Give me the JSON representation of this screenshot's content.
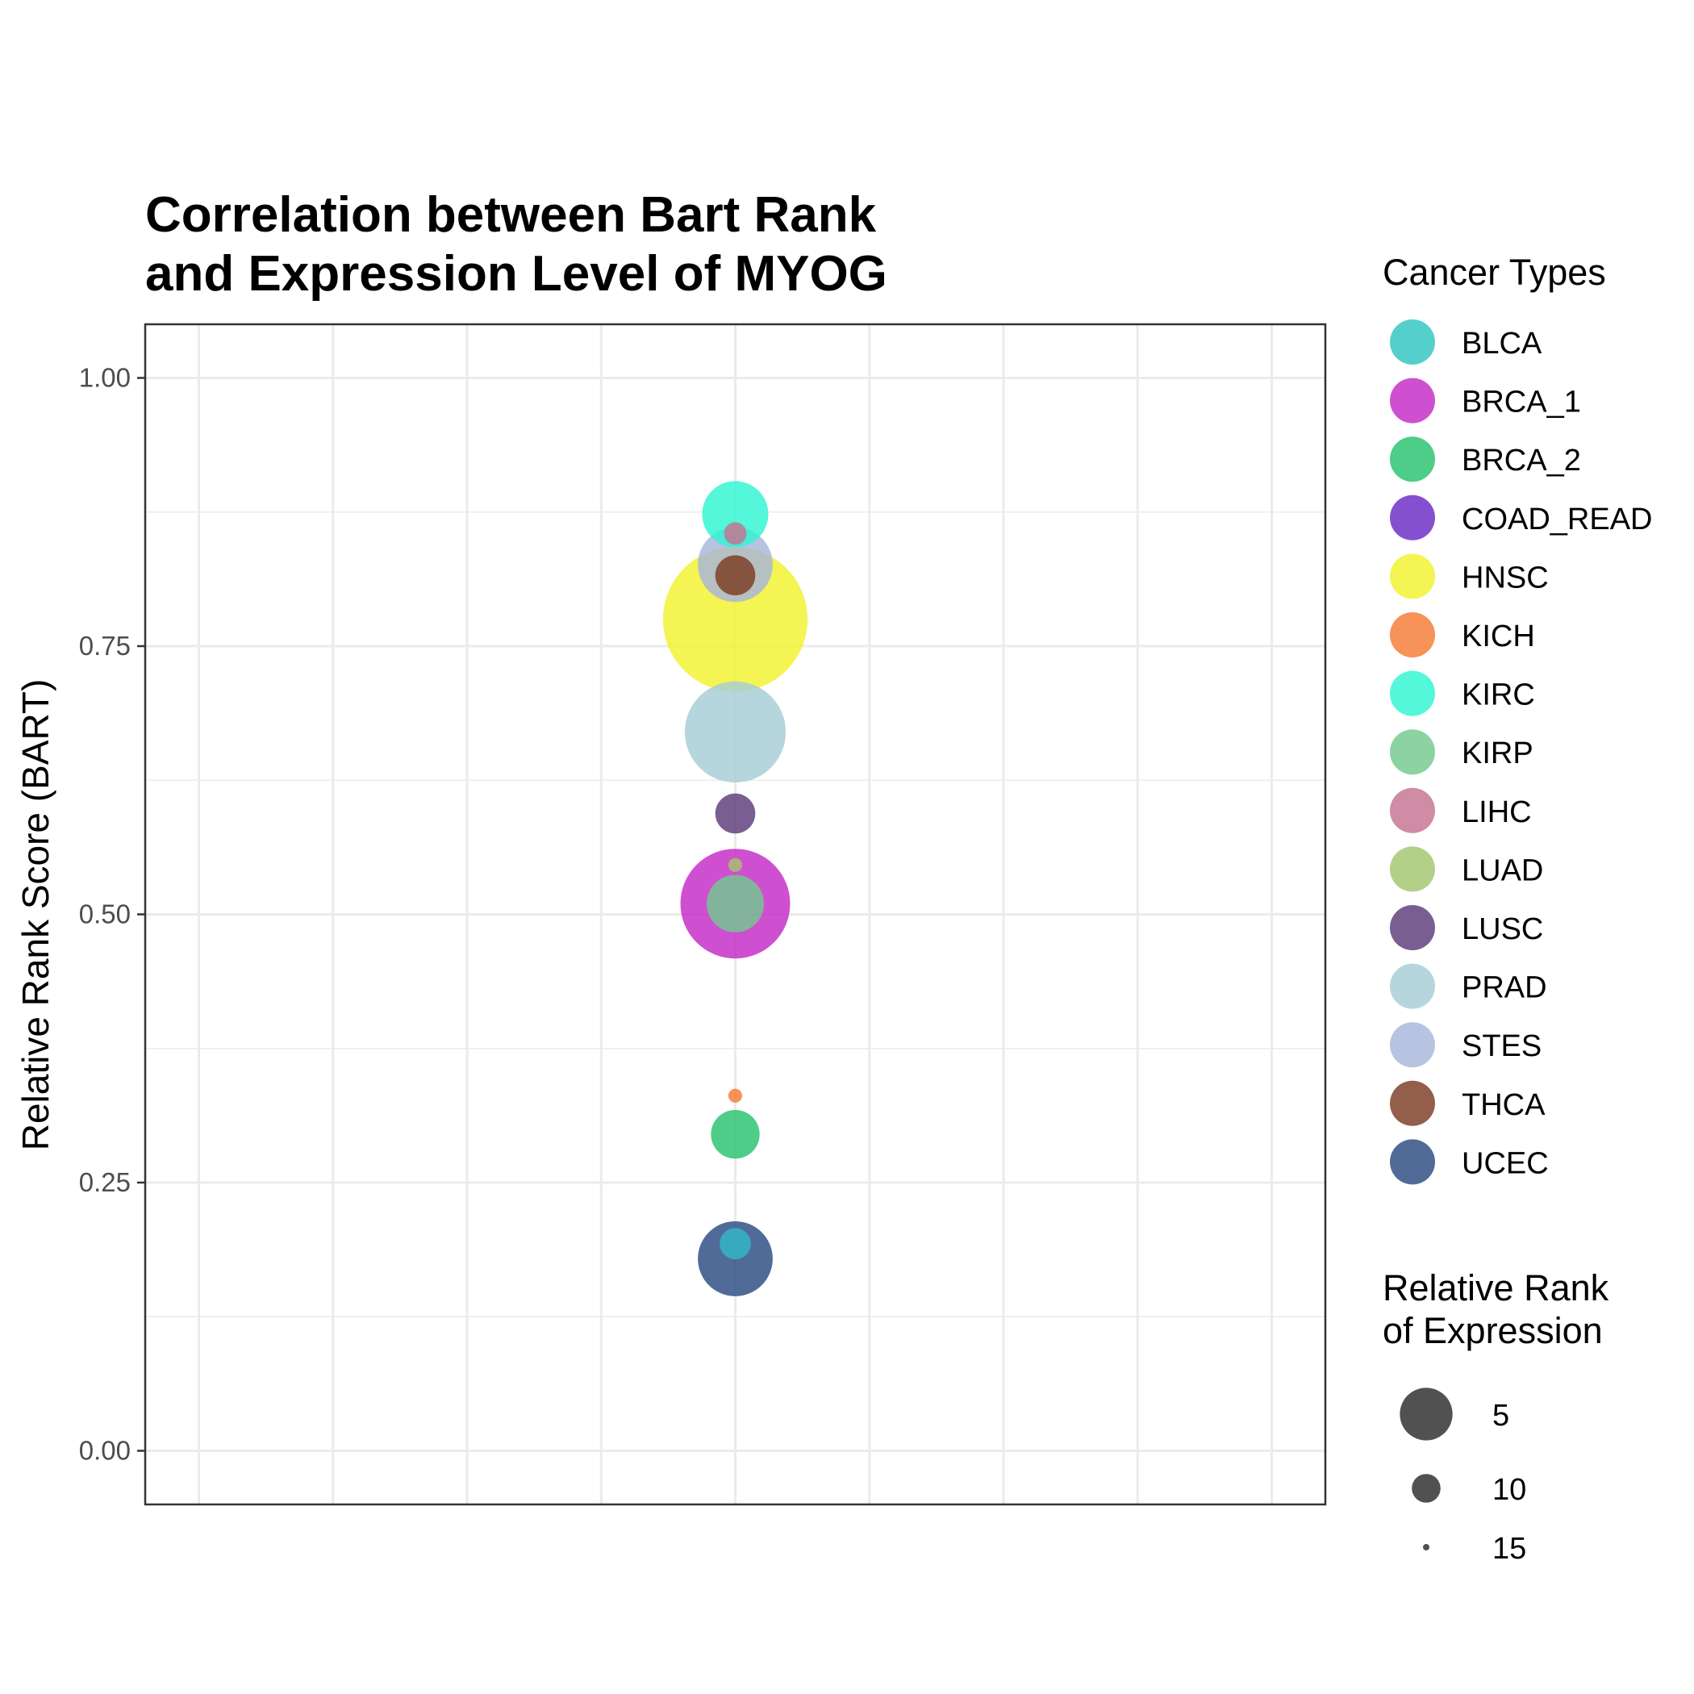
{
  "chart_data": {
    "type": "scatter",
    "title": [
      "Correlation between Bart Rank",
      "and Expression Level of MYOG"
    ],
    "ylabel": "Relative Rank Score (BART)",
    "xlabel": "",
    "ylim": [
      -0.05,
      1.05
    ],
    "yticks": [
      "0.00",
      "0.25",
      "0.50",
      "0.75",
      "1.00"
    ],
    "grid": true,
    "legend_placement": "right",
    "color_legend_title": "Cancer Types",
    "size_legend_title": [
      "Relative Rank",
      "of Expression"
    ],
    "size_legend": [
      {
        "label": "5",
        "value": 5
      },
      {
        "label": "10",
        "value": 10
      },
      {
        "label": "15",
        "value": 15
      }
    ],
    "series": [
      {
        "name": "BLCA",
        "color": "#2ec4c0"
      },
      {
        "name": "BRCA_1",
        "color": "#c528c7"
      },
      {
        "name": "BRCA_2",
        "color": "#26c26c"
      },
      {
        "name": "COAD_READ",
        "color": "#6a2ac4"
      },
      {
        "name": "HNSC",
        "color": "#f2f22c"
      },
      {
        "name": "KICH",
        "color": "#f57a33"
      },
      {
        "name": "KIRC",
        "color": "#2ef5d2"
      },
      {
        "name": "KIRP",
        "color": "#72c98e"
      },
      {
        "name": "LIHC",
        "color": "#c57390"
      },
      {
        "name": "LUAD",
        "color": "#a3c56e"
      },
      {
        "name": "LUSC",
        "color": "#5c3a7a"
      },
      {
        "name": "PRAD",
        "color": "#a6cdd6"
      },
      {
        "name": "STES",
        "color": "#a8b4da"
      },
      {
        "name": "THCA",
        "color": "#7b3a22"
      },
      {
        "name": "UCEC",
        "color": "#2a4a80"
      }
    ],
    "points": [
      {
        "series": "KIRC",
        "y": 0.873,
        "size": 10
      },
      {
        "series": "LIHC",
        "y": 0.855,
        "size": 15
      },
      {
        "series": "STES",
        "y": 0.826,
        "size": 9
      },
      {
        "series": "THCA",
        "y": 0.816,
        "size": 13
      },
      {
        "series": "HNSC",
        "y": 0.775,
        "size": 1
      },
      {
        "series": "PRAD",
        "y": 0.67,
        "size": 6
      },
      {
        "series": "LUSC",
        "y": 0.594,
        "size": 13
      },
      {
        "series": "LUAD",
        "y": 0.546,
        "size": 16
      },
      {
        "series": "BRCA_1",
        "y": 0.51,
        "size": 5
      },
      {
        "series": "KIRP",
        "y": 0.51,
        "size": 11
      },
      {
        "series": "KICH",
        "y": 0.331,
        "size": 16
      },
      {
        "series": "BRCA_2",
        "y": 0.295,
        "size": 12
      },
      {
        "series": "COAD_READ",
        "y": 0.193,
        "size": 14
      },
      {
        "series": "UCEC",
        "y": 0.179,
        "size": 9
      },
      {
        "series": "BLCA",
        "y": 0.193,
        "size": 14
      }
    ]
  }
}
